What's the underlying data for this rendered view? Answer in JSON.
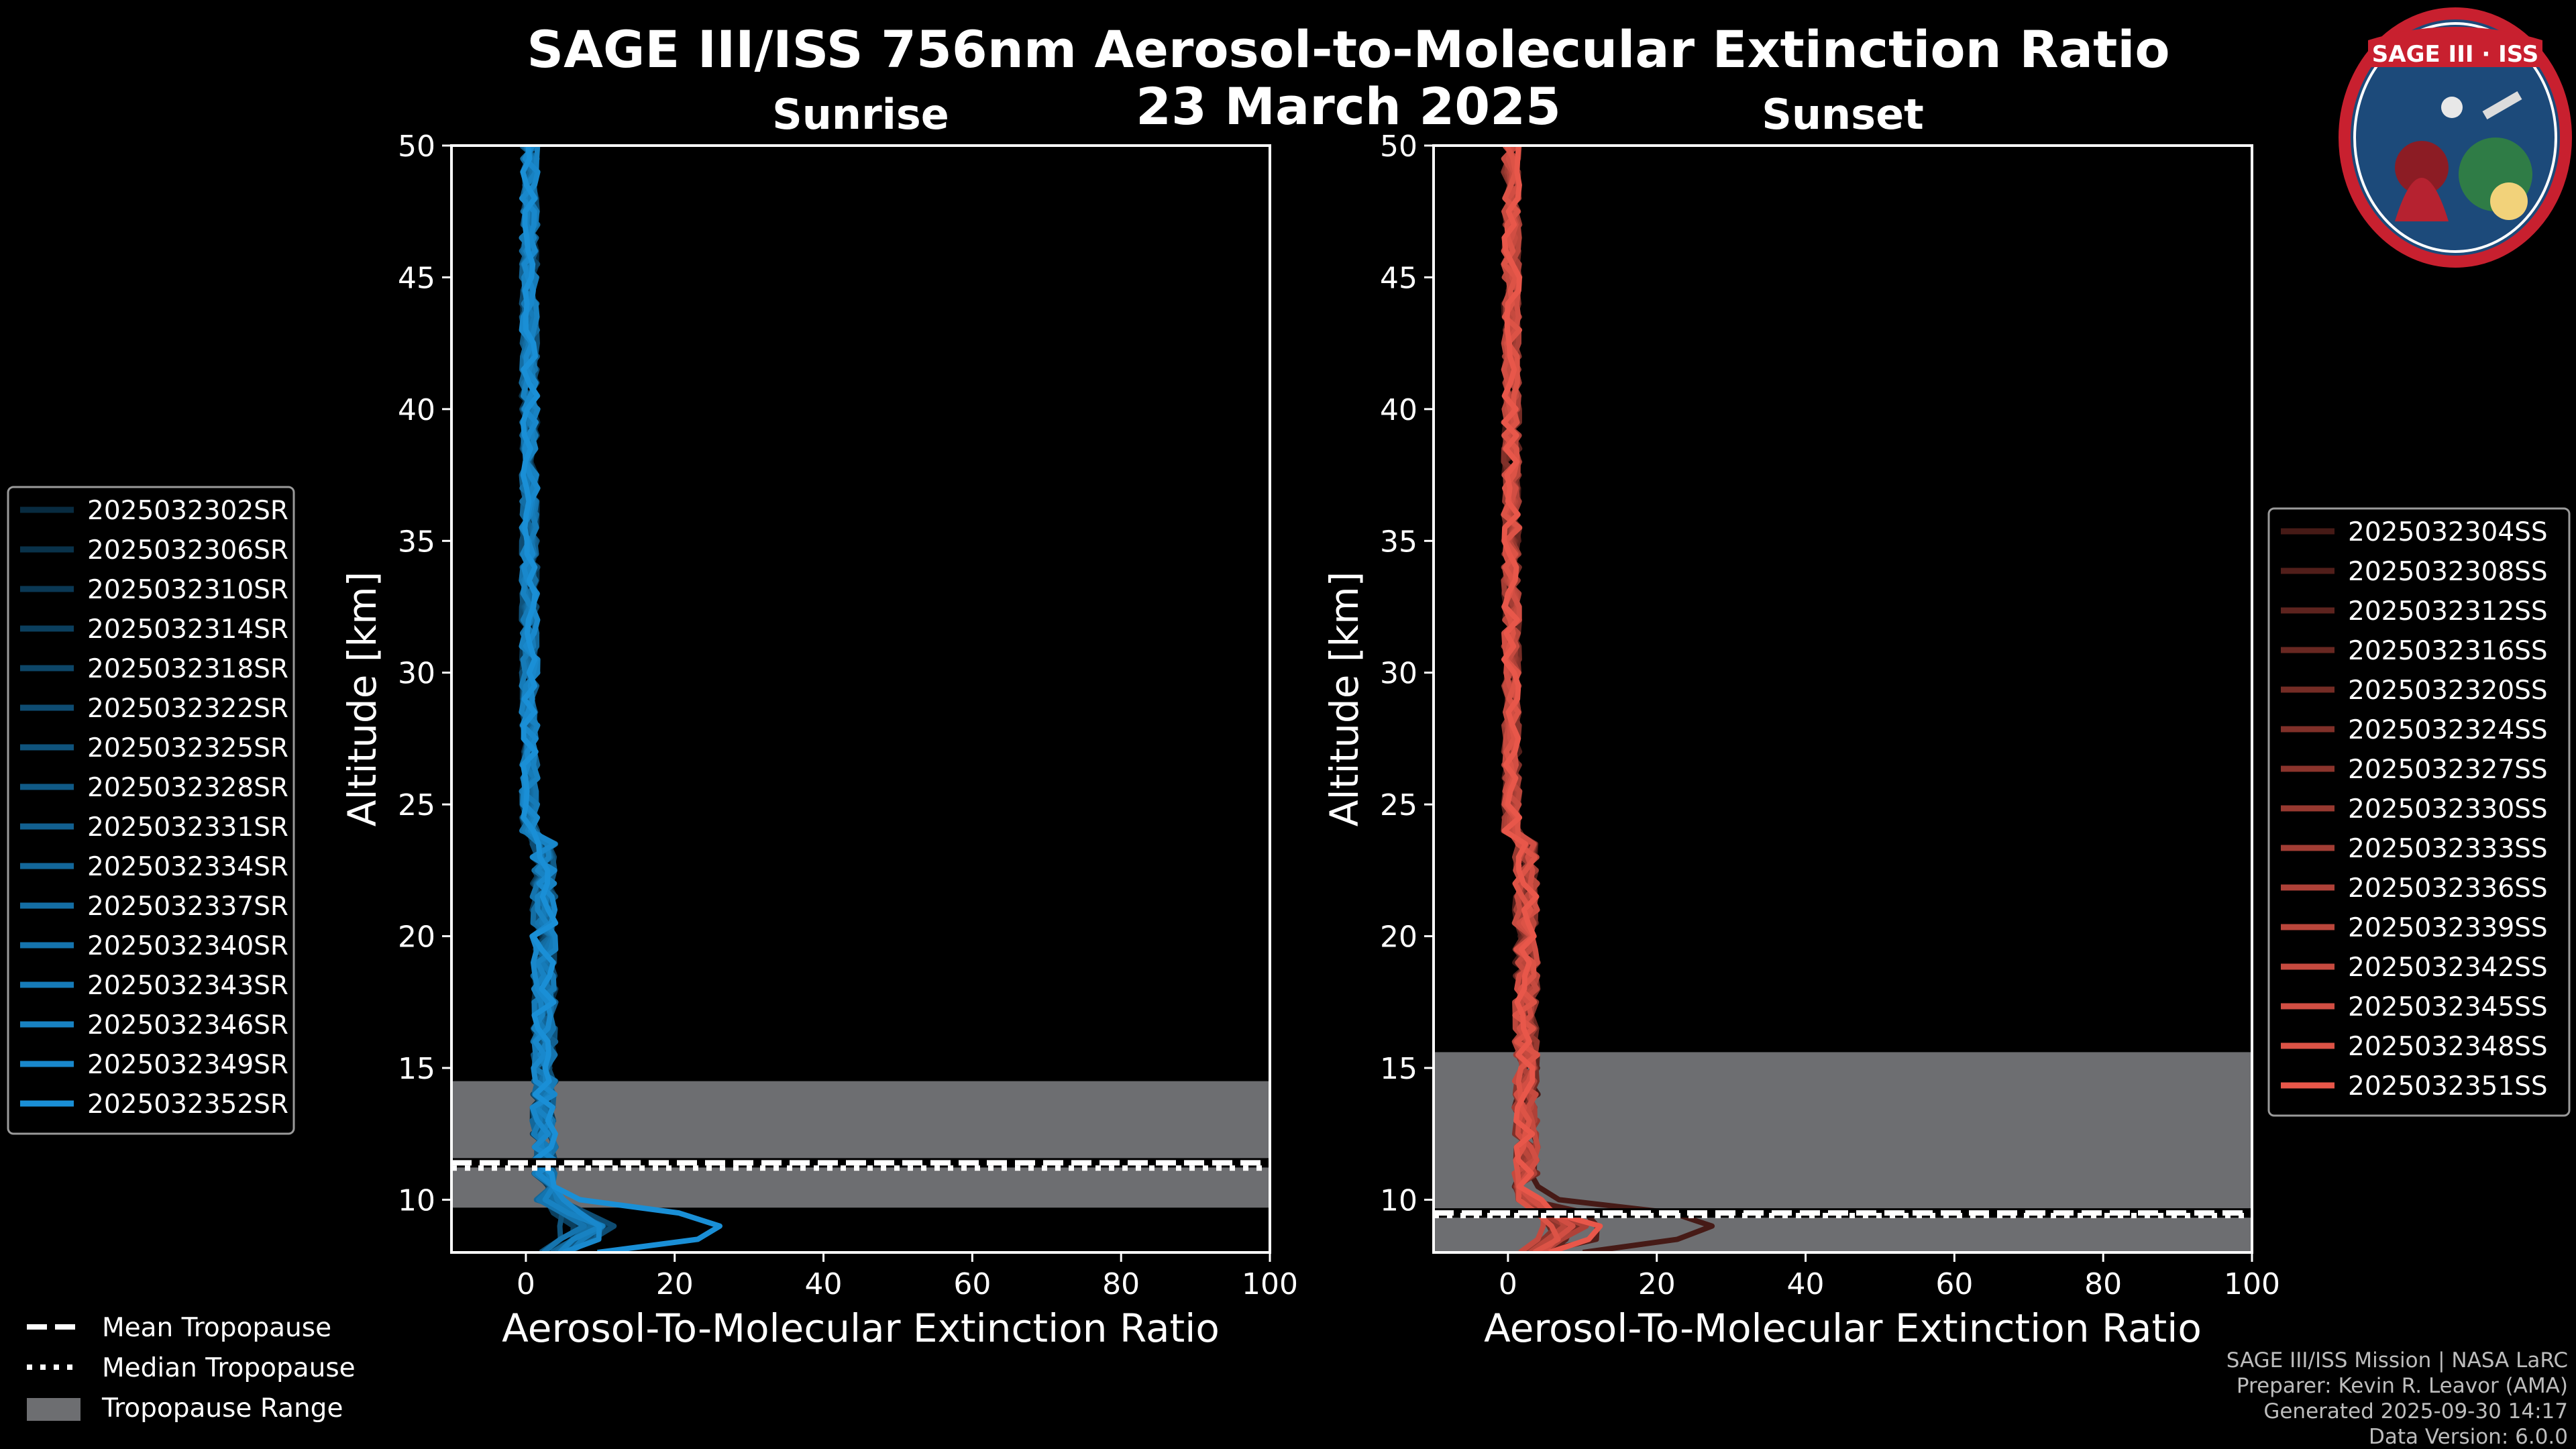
{
  "figure": {
    "title_line1": "SAGE III/ISS 756nm Aerosol-to-Molecular Extinction Ratio",
    "title_line2": "23 March 2025"
  },
  "footer": {
    "line1": "SAGE III/ISS Mission | NASA LaRC",
    "line2": "Preparer: Kevin R. Leavor (AMA)",
    "line3": "Generated 2025-09-30 14:17",
    "line4": "Data Version: 6.0.0"
  },
  "logo": {
    "text": "SAGE III · ISS"
  },
  "colors": {
    "sunrise": "#1a8fd6",
    "sunset": "#e8574a",
    "range": "#6d6e71",
    "background": "#000000"
  },
  "tropo_legend": {
    "mean": "Mean Tropopause",
    "median": "Median Tropopause",
    "range": "Tropopause Range"
  },
  "chart_data": [
    {
      "type": "line",
      "title": "Sunrise",
      "xlabel": "Aerosol-To-Molecular Extinction Ratio",
      "ylabel": "Altitude [km]",
      "xlim": [
        -10,
        100
      ],
      "ylim": [
        8,
        50
      ],
      "xticks": [
        0,
        20,
        40,
        60,
        80,
        100
      ],
      "yticks": [
        10,
        15,
        20,
        25,
        30,
        35,
        40,
        45,
        50
      ],
      "legend_position": "left",
      "tropopause": {
        "mean": 11.4,
        "median": 11.2,
        "range": [
          9.7,
          14.5
        ]
      },
      "series": [
        {
          "name": "2025032302SR",
          "peak": 8,
          "seed": 1
        },
        {
          "name": "2025032306SR",
          "peak": 7,
          "seed": 2
        },
        {
          "name": "2025032310SR",
          "peak": 10,
          "seed": 3
        },
        {
          "name": "2025032314SR",
          "peak": 6,
          "seed": 4
        },
        {
          "name": "2025032318SR",
          "peak": 9,
          "seed": 5
        },
        {
          "name": "2025032322SR",
          "peak": 12,
          "seed": 6
        },
        {
          "name": "2025032325SR",
          "peak": 5,
          "seed": 7
        },
        {
          "name": "2025032328SR",
          "peak": 8,
          "seed": 8
        },
        {
          "name": "2025032331SR",
          "peak": 11,
          "seed": 9
        },
        {
          "name": "2025032334SR",
          "peak": 7,
          "seed": 10
        },
        {
          "name": "2025032337SR",
          "peak": 9,
          "seed": 11
        },
        {
          "name": "2025032340SR",
          "peak": 6,
          "seed": 12
        },
        {
          "name": "2025032343SR",
          "peak": 10,
          "seed": 13
        },
        {
          "name": "2025032346SR",
          "peak": 8,
          "seed": 14
        },
        {
          "name": "2025032349SR",
          "peak": 12,
          "seed": 15
        },
        {
          "name": "2025032352SR",
          "peak": 31,
          "seed": 16
        }
      ]
    },
    {
      "type": "line",
      "title": "Sunset",
      "xlabel": "Aerosol-To-Molecular Extinction Ratio",
      "ylabel": "Altitude [km]",
      "xlim": [
        -10,
        100
      ],
      "ylim": [
        8,
        50
      ],
      "xticks": [
        0,
        20,
        40,
        60,
        80,
        100
      ],
      "yticks": [
        10,
        15,
        20,
        25,
        30,
        35,
        40,
        45,
        50
      ],
      "legend_position": "right",
      "tropopause": {
        "mean": 9.5,
        "median": 9.4,
        "range": [
          8.0,
          15.6
        ]
      },
      "series": [
        {
          "name": "2025032304SS",
          "peak": 31,
          "seed": 21
        },
        {
          "name": "2025032308SS",
          "peak": 14,
          "seed": 22
        },
        {
          "name": "2025032312SS",
          "peak": 8,
          "seed": 23
        },
        {
          "name": "2025032316SS",
          "peak": 6,
          "seed": 24
        },
        {
          "name": "2025032320SS",
          "peak": 9,
          "seed": 25
        },
        {
          "name": "2025032324SS",
          "peak": 7,
          "seed": 26
        },
        {
          "name": "2025032327SS",
          "peak": 5,
          "seed": 27
        },
        {
          "name": "2025032330SS",
          "peak": 8,
          "seed": 28
        },
        {
          "name": "2025032333SS",
          "peak": 6,
          "seed": 29
        },
        {
          "name": "2025032336SS",
          "peak": 10,
          "seed": 30
        },
        {
          "name": "2025032339SS",
          "peak": 7,
          "seed": 31
        },
        {
          "name": "2025032342SS",
          "peak": 5,
          "seed": 32
        },
        {
          "name": "2025032345SS",
          "peak": 8,
          "seed": 33
        },
        {
          "name": "2025032348SS",
          "peak": 6,
          "seed": 34
        },
        {
          "name": "2025032351SS",
          "peak": 12,
          "seed": 35
        }
      ]
    }
  ]
}
